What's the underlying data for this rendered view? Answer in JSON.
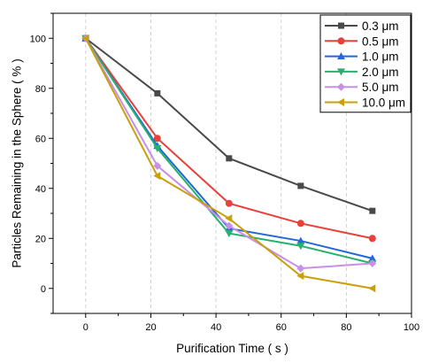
{
  "chart_data": {
    "type": "line",
    "title": "",
    "xlabel": "Purification Time ( s )",
    "ylabel": "Particles Remaining in the Sphere ( % )",
    "xlim": [
      -10,
      100
    ],
    "ylim": [
      -10,
      110
    ],
    "xticks": [
      0,
      20,
      40,
      60,
      80,
      100
    ],
    "yticks": [
      0,
      20,
      40,
      60,
      80,
      100
    ],
    "grid": "vertical dashed at major x ticks",
    "legend_position": "top-right",
    "x": [
      0,
      22,
      44,
      66,
      88
    ],
    "series": [
      {
        "name": "0.3 μm",
        "color": "#4a4a4a",
        "marker": "square",
        "values": [
          100,
          78,
          52,
          41,
          31
        ]
      },
      {
        "name": "0.5 μm",
        "color": "#e8413a",
        "marker": "circle",
        "values": [
          100,
          60,
          34,
          26,
          20
        ]
      },
      {
        "name": "1.0 μm",
        "color": "#2468d8",
        "marker": "triangle-up",
        "values": [
          100,
          57,
          24,
          19,
          12
        ]
      },
      {
        "name": "2.0 μm",
        "color": "#27b16e",
        "marker": "triangle-down",
        "values": [
          100,
          56,
          22,
          17,
          10
        ]
      },
      {
        "name": "5.0 μm",
        "color": "#c88ee8",
        "marker": "diamond",
        "values": [
          100,
          49,
          25,
          8,
          10
        ]
      },
      {
        "name": "10.0 μm",
        "color": "#c9a00c",
        "marker": "triangle-left",
        "values": [
          100,
          45,
          28,
          5,
          0
        ]
      }
    ]
  }
}
